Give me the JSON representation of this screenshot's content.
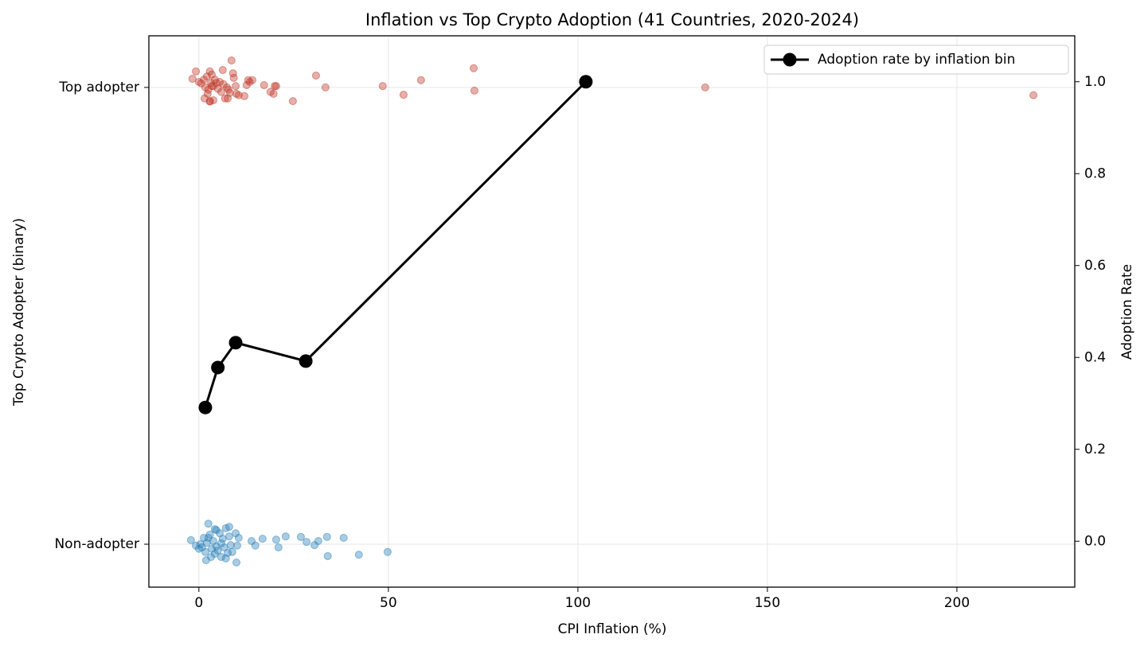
{
  "chart_data": {
    "type": "scatter",
    "title": "Inflation vs Top Crypto Adoption (41 Countries, 2020-2024)",
    "xlabel": "CPI Inflation (%)",
    "ylabel": "Top Crypto Adopter (binary)",
    "y2label": "Adoption Rate",
    "xlim": [
      -13.2,
      231.1
    ],
    "xticks": [
      0,
      50,
      100,
      150,
      200
    ],
    "ylim": [
      -0.094,
      1.113
    ],
    "yticks": [
      {
        "value": 0,
        "label": "Non-adopter"
      },
      {
        "value": 1,
        "label": "Top adopter"
      }
    ],
    "y2lim": [
      -0.1,
      1.1
    ],
    "y2ticks": [
      {
        "value": 0,
        "label": "0.0"
      },
      0.2,
      0.4,
      0.6,
      0.8,
      {
        "value": 1,
        "label": "1.0"
      }
    ],
    "grid": true,
    "legend": "upper right",
    "series": [
      {
        "type": "scatter",
        "color": "#c0392b",
        "x": [
          -1.7,
          -0.8,
          0,
          0.6,
          1.3,
          1.7,
          2.1,
          2.5,
          2.9,
          3.2,
          3.4,
          1.5,
          2.3,
          2.9,
          3.4,
          3.8,
          4.2,
          4.6,
          5.0,
          5.5,
          5.9,
          6.3,
          6.5,
          6.9,
          7.4,
          7.8,
          8.2,
          8.6,
          9.0,
          9.2,
          9.7,
          9.9,
          10.5,
          12.0,
          12.6,
          13.0,
          13.4,
          14.1,
          17.2,
          18.9,
          19.7,
          20.0,
          20.4,
          24.8,
          30.9,
          33.4,
          48.5,
          54.0,
          58.6,
          72.5,
          72.7,
          133.6,
          220.2,
          2.9,
          3.8,
          7.6
        ],
        "values": [
          1.019,
          1.035,
          1.012,
          1.009,
          1.017,
          1.0,
          1.024,
          0.995,
          1.035,
          1.01,
          1.003,
          0.976,
          0.986,
          0.97,
          1.028,
          1.003,
          1.017,
          1.01,
          0.997,
          1.012,
          0.99,
          1.038,
          1.007,
          0.976,
          1.0,
          0.995,
          0.988,
          1.059,
          1.031,
          1.021,
          1.003,
          0.986,
          0.983,
          0.981,
          1.005,
          1.016,
          1.012,
          1.016,
          1.005,
          0.99,
          0.986,
          1.003,
          1.003,
          0.97,
          1.026,
          1.0,
          1.003,
          0.984,
          1.016,
          1.042,
          0.993,
          1.0,
          0.983,
          0.969,
          0.972,
          0.976
        ]
      },
      {
        "type": "scatter",
        "color": "#2980b9",
        "x": [
          -2.1,
          -0.8,
          0,
          0.4,
          0.8,
          1.3,
          1.7,
          2.1,
          2.5,
          2.9,
          3.4,
          3.8,
          4.2,
          4.6,
          5.0,
          5.5,
          5.9,
          6.3,
          6.7,
          7.1,
          7.6,
          8.0,
          8.4,
          8.8,
          9.7,
          10.1,
          10.5,
          1.9,
          3.2,
          5.9,
          7.1,
          9.9,
          13.9,
          14.9,
          16.8,
          20.4,
          21.0,
          22.9,
          26.9,
          28.4,
          30.5,
          31.5,
          33.8,
          34.0,
          38.2,
          42.2,
          49.8,
          4.6,
          2.5,
          4.2,
          8.0
        ],
        "values": [
          0.009,
          -0.003,
          -0.01,
          0,
          -0.007,
          0.014,
          -0.017,
          0.003,
          0.045,
          0.021,
          -0.01,
          0.007,
          0.033,
          -0.005,
          -0.014,
          0.024,
          0.002,
          0.012,
          -0.007,
          0.035,
          -0.019,
          0.017,
          -0.002,
          -0.017,
          0.024,
          -0.003,
          0.014,
          -0.035,
          -0.028,
          -0.028,
          -0.031,
          -0.04,
          0.007,
          -0.003,
          0.012,
          0.01,
          -0.007,
          0.017,
          0.016,
          0.005,
          -0.002,
          0.007,
          0.016,
          -0.026,
          0.014,
          -0.023,
          -0.017,
          0.031,
          0.014,
          -0.021,
          0.038
        ]
      },
      {
        "type": "line",
        "name": "Adoption rate by inflation bin",
        "axis": "y2",
        "color": "#000000",
        "x": [
          1.7,
          5.0,
          9.7,
          28.2,
          102.1
        ],
        "values": [
          0.291,
          0.378,
          0.432,
          0.392,
          1.0
        ]
      }
    ]
  }
}
